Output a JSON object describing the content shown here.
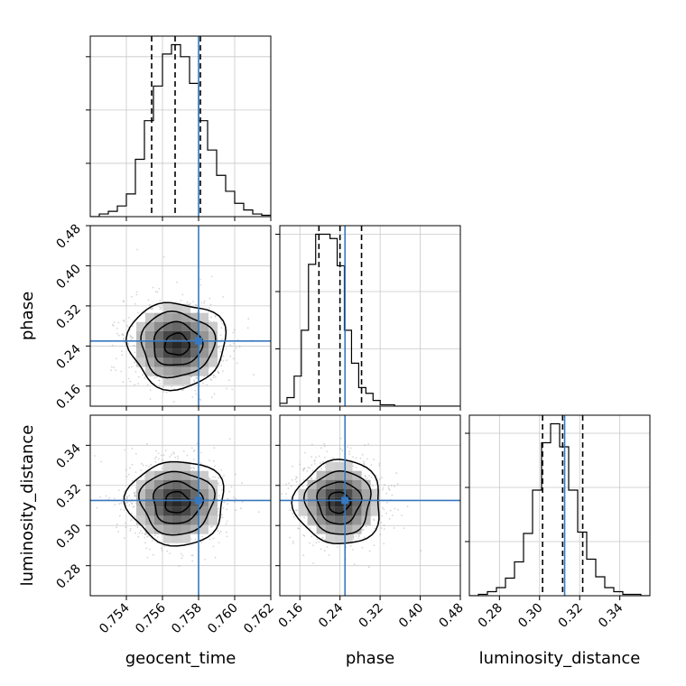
{
  "chart_data": {
    "type": "corner",
    "parameters": [
      "geocent_time",
      "phase",
      "luminosity_distance"
    ],
    "truth_color": "#3778bf",
    "axes": {
      "geocent_time": {
        "label": "geocent_time",
        "range": [
          0.752,
          0.762
        ],
        "ticks": [
          0.754,
          0.756,
          0.758,
          0.76,
          0.762
        ],
        "tick_labels": [
          "0.754",
          "0.756",
          "0.758",
          "0.760",
          "0.762"
        ],
        "truth": 0.758,
        "quantiles": [
          0.7554,
          0.7567,
          0.7581
        ]
      },
      "phase": {
        "label": "phase",
        "range": [
          0.12,
          0.48
        ],
        "ticks": [
          0.16,
          0.24,
          0.32,
          0.4,
          0.48
        ],
        "tick_labels": [
          "0.16",
          "0.24",
          "0.32",
          "0.40",
          "0.48"
        ],
        "truth": 0.25,
        "quantiles": [
          0.198,
          0.24,
          0.283
        ]
      },
      "luminosity_distance": {
        "label": "luminosity_distance",
        "range": [
          0.265,
          0.355
        ],
        "ticks": [
          0.28,
          0.3,
          0.32,
          0.34
        ],
        "tick_labels": [
          "0.28",
          "0.30",
          "0.32",
          "0.34"
        ],
        "truth": 0.3125,
        "quantiles": [
          0.3015,
          0.3115,
          0.3215
        ]
      }
    },
    "histograms": {
      "geocent_time": {
        "x_start": 0.752,
        "bin_width": 0.0005,
        "counts": [
          0,
          2,
          4,
          8,
          17,
          43,
          72,
          98,
          122,
          129,
          120,
          100,
          72,
          50,
          31,
          19,
          10,
          5,
          2,
          1
        ]
      },
      "phase": {
        "x_start": 0.12,
        "bin_width": 0.0143,
        "counts": [
          2,
          6,
          21,
          53,
          99,
          120,
          120,
          117,
          98,
          53,
          30,
          13,
          9,
          4,
          1,
          1,
          0,
          0,
          0,
          0,
          0,
          0,
          0,
          0,
          0
        ]
      },
      "luminosity_distance": {
        "x_start": 0.265,
        "bin_width": 0.0045,
        "counts": [
          0,
          1,
          3,
          6,
          13,
          25,
          46,
          78,
          113,
          127,
          110,
          78,
          47,
          27,
          14,
          6,
          3,
          1,
          1,
          0
        ]
      }
    },
    "joint": [
      {
        "x": "geocent_time",
        "y": "phase",
        "center": [
          0.7568,
          0.243
        ],
        "spread": [
          0.00135,
          0.043
        ]
      },
      {
        "x": "geocent_time",
        "y": "luminosity_distance",
        "center": [
          0.7568,
          0.3115
        ],
        "spread": [
          0.00135,
          0.0105
        ]
      },
      {
        "x": "phase",
        "y": "luminosity_distance",
        "center": [
          0.238,
          0.3115
        ],
        "spread": [
          0.043,
          0.0105
        ]
      }
    ]
  }
}
